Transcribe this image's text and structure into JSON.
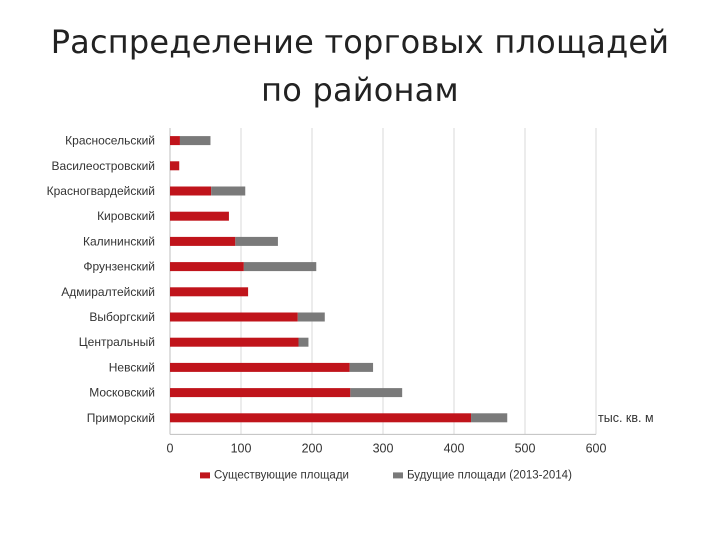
{
  "slide": {
    "title_line1": "Распределение торговых площадей",
    "title_line2": "по районам"
  },
  "chart_data": {
    "type": "bar",
    "orientation": "horizontal",
    "stacked": true,
    "categories": [
      "Красносельский",
      "Василеостровский",
      "Красногвардейский",
      "Кировский",
      "Калининский",
      "Фрунзенский",
      "Адмиралтейский",
      "Выборгский",
      "Центральный",
      "Невский",
      "Московский",
      "Приморский"
    ],
    "series": [
      {
        "name": "Существующие площади",
        "color": "#c0141b",
        "values": [
          14,
          13,
          58,
          83,
          92,
          104,
          110,
          180,
          181,
          253,
          254,
          424
        ]
      },
      {
        "name": "Будущие площади (2013-2014)",
        "color": "#7a7a7a",
        "values": [
          43,
          0,
          48,
          0,
          60,
          102,
          0,
          38,
          14,
          33,
          73,
          51
        ]
      }
    ],
    "xlim": [
      0,
      600
    ],
    "xticks": [
      0,
      100,
      200,
      300,
      400,
      500,
      600
    ],
    "xlabel": "тыс. кв. м",
    "grid": "vertical",
    "legend": "bottom"
  }
}
